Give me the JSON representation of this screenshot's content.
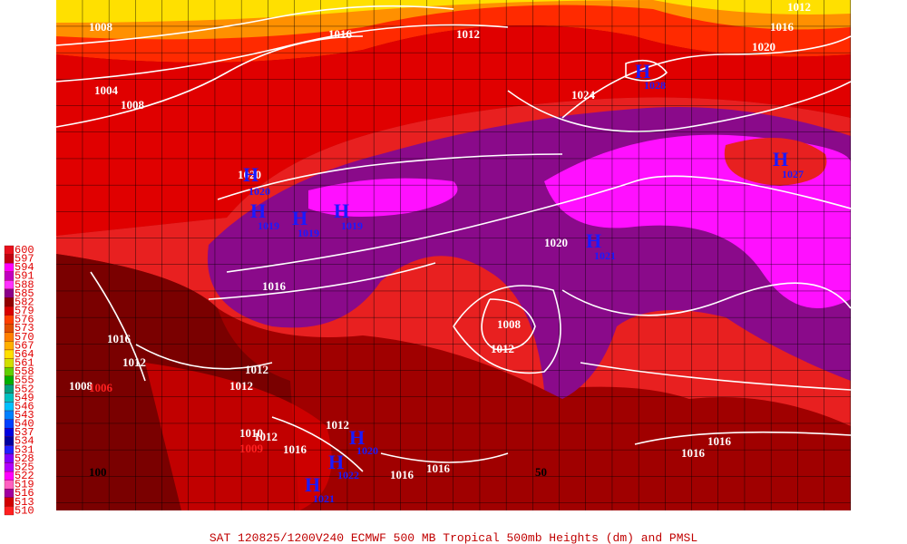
{
  "caption": "SAT 120825/1200V240  ECMWF  500 MB Tropical 500mb Heights (dm) and PMSL",
  "colorbar": [
    {
      "label": "600",
      "color": "#e8101c"
    },
    {
      "label": "597",
      "color": "#c00010"
    },
    {
      "label": "594",
      "color": "#ff00ff"
    },
    {
      "label": "591",
      "color": "#c000c0"
    },
    {
      "label": "588",
      "color": "#ff30ff"
    },
    {
      "label": "585",
      "color": "#8a008a"
    },
    {
      "label": "582",
      "color": "#900000"
    },
    {
      "label": "579",
      "color": "#d80000"
    },
    {
      "label": "576",
      "color": "#ff4000"
    },
    {
      "label": "573",
      "color": "#e05000"
    },
    {
      "label": "570",
      "color": "#ff8000"
    },
    {
      "label": "567",
      "color": "#ffb000"
    },
    {
      "label": "564",
      "color": "#ffe000"
    },
    {
      "label": "561",
      "color": "#d0e000"
    },
    {
      "label": "558",
      "color": "#60d000"
    },
    {
      "label": "555",
      "color": "#00b000"
    },
    {
      "label": "552",
      "color": "#00a080"
    },
    {
      "label": "549",
      "color": "#00c0c0"
    },
    {
      "label": "546",
      "color": "#00c0ff"
    },
    {
      "label": "543",
      "color": "#0080ff"
    },
    {
      "label": "540",
      "color": "#0040ff"
    },
    {
      "label": "537",
      "color": "#0000e0"
    },
    {
      "label": "534",
      "color": "#0000a0"
    },
    {
      "label": "531",
      "color": "#2020ff"
    },
    {
      "label": "528",
      "color": "#8000ff"
    },
    {
      "label": "525",
      "color": "#b000ff"
    },
    {
      "label": "522",
      "color": "#ff00ff"
    },
    {
      "label": "519",
      "color": "#ff60c0"
    },
    {
      "label": "516",
      "color": "#a000a0"
    },
    {
      "label": "513",
      "color": "#d00000"
    },
    {
      "label": "510",
      "color": "#ff2020"
    }
  ],
  "isobar_labels": [
    "1008",
    "1016",
    "1012",
    "1012",
    "1016",
    "1020",
    "1004",
    "1008",
    "1024",
    "1020",
    "1020",
    "1016",
    "1008",
    "1012",
    "1016",
    "1012",
    "1012",
    "1012",
    "1008",
    "1012",
    "1016",
    "1016",
    "1016",
    "1016",
    "1016",
    "1012",
    "1010"
  ],
  "red_labels": [
    "1009",
    "1006"
  ],
  "highs": [
    {
      "symbol": "H",
      "pressure": "1028"
    },
    {
      "symbol": "H",
      "pressure": "1027"
    },
    {
      "symbol": "H",
      "pressure": "1021"
    },
    {
      "symbol": "H",
      "pressure": "1019"
    },
    {
      "symbol": "H",
      "pressure": "1019"
    },
    {
      "symbol": "H",
      "pressure": "1019"
    },
    {
      "symbol": "H",
      "pressure": "1020"
    },
    {
      "symbol": "H",
      "pressure": "1020"
    },
    {
      "symbol": "H",
      "pressure": "1022"
    },
    {
      "symbol": "H",
      "pressure": "1021"
    }
  ],
  "longitude_labels": [
    "100",
    "50"
  ]
}
